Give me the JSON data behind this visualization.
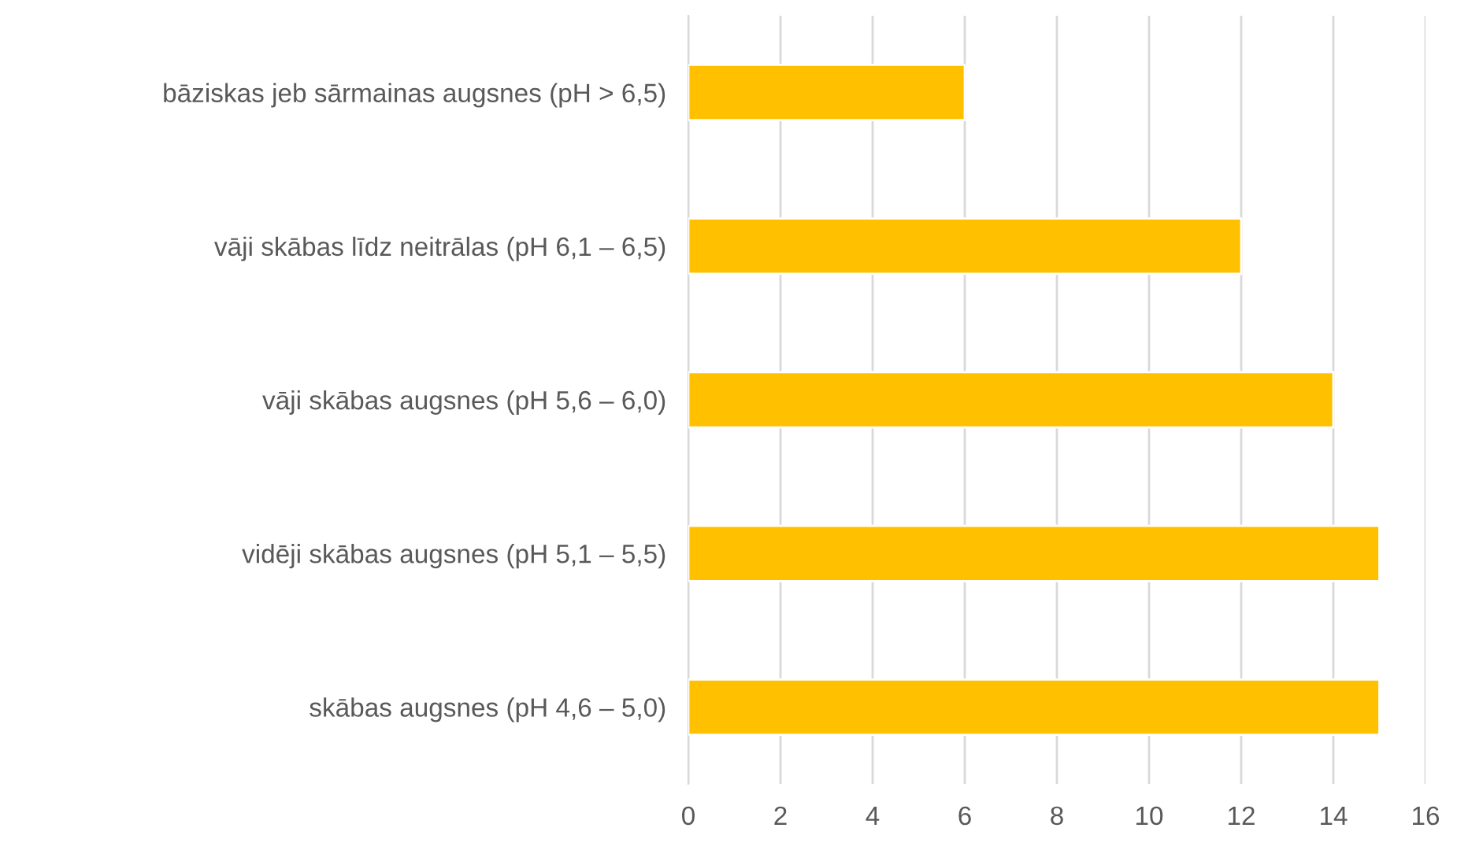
{
  "chart_data": {
    "type": "bar",
    "orientation": "horizontal",
    "categories": [
      "bāziskas jeb sārmainas augsnes (pH > 6,5)",
      "vāji skābas līdz neitrālas (pH 6,1 – 6,5)",
      "vāji skābas augsnes (pH 5,6 – 6,0)",
      "vidēji skābas augsnes (pH 5,1 – 5,5)",
      "skābas augsnes (pH 4,6 – 5,0)"
    ],
    "values": [
      6,
      12,
      14,
      15,
      15
    ],
    "color": "#ffc000",
    "xlim": [
      0,
      16
    ],
    "xticks": [
      0,
      2,
      4,
      6,
      8,
      10,
      12,
      14,
      16
    ],
    "grid": "x",
    "legend": false
  }
}
